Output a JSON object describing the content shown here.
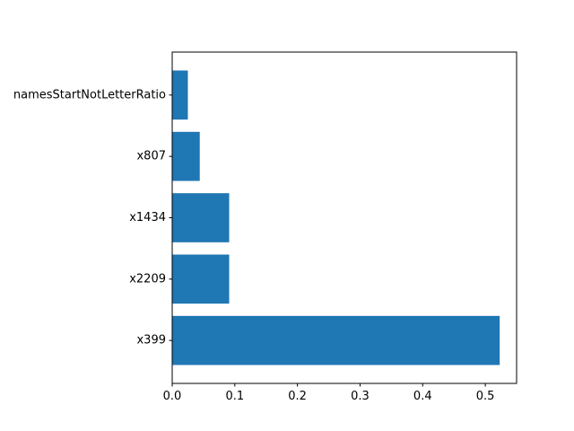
{
  "chart_data": {
    "type": "bar",
    "orientation": "horizontal",
    "categories": [
      "x399",
      "x2209",
      "x1434",
      "x807",
      "namesStartNotLetterRatio"
    ],
    "values": [
      0.523,
      0.091,
      0.091,
      0.044,
      0.025
    ],
    "xlim": [
      0,
      0.55
    ],
    "xticks": [
      0,
      0.1,
      0.2,
      0.3,
      0.4,
      0.5
    ],
    "xtick_labels": [
      "0.0",
      "0.1",
      "0.2",
      "0.3",
      "0.4",
      "0.5"
    ],
    "bar_color": "#1f77b4",
    "grid": false,
    "legend": false
  }
}
